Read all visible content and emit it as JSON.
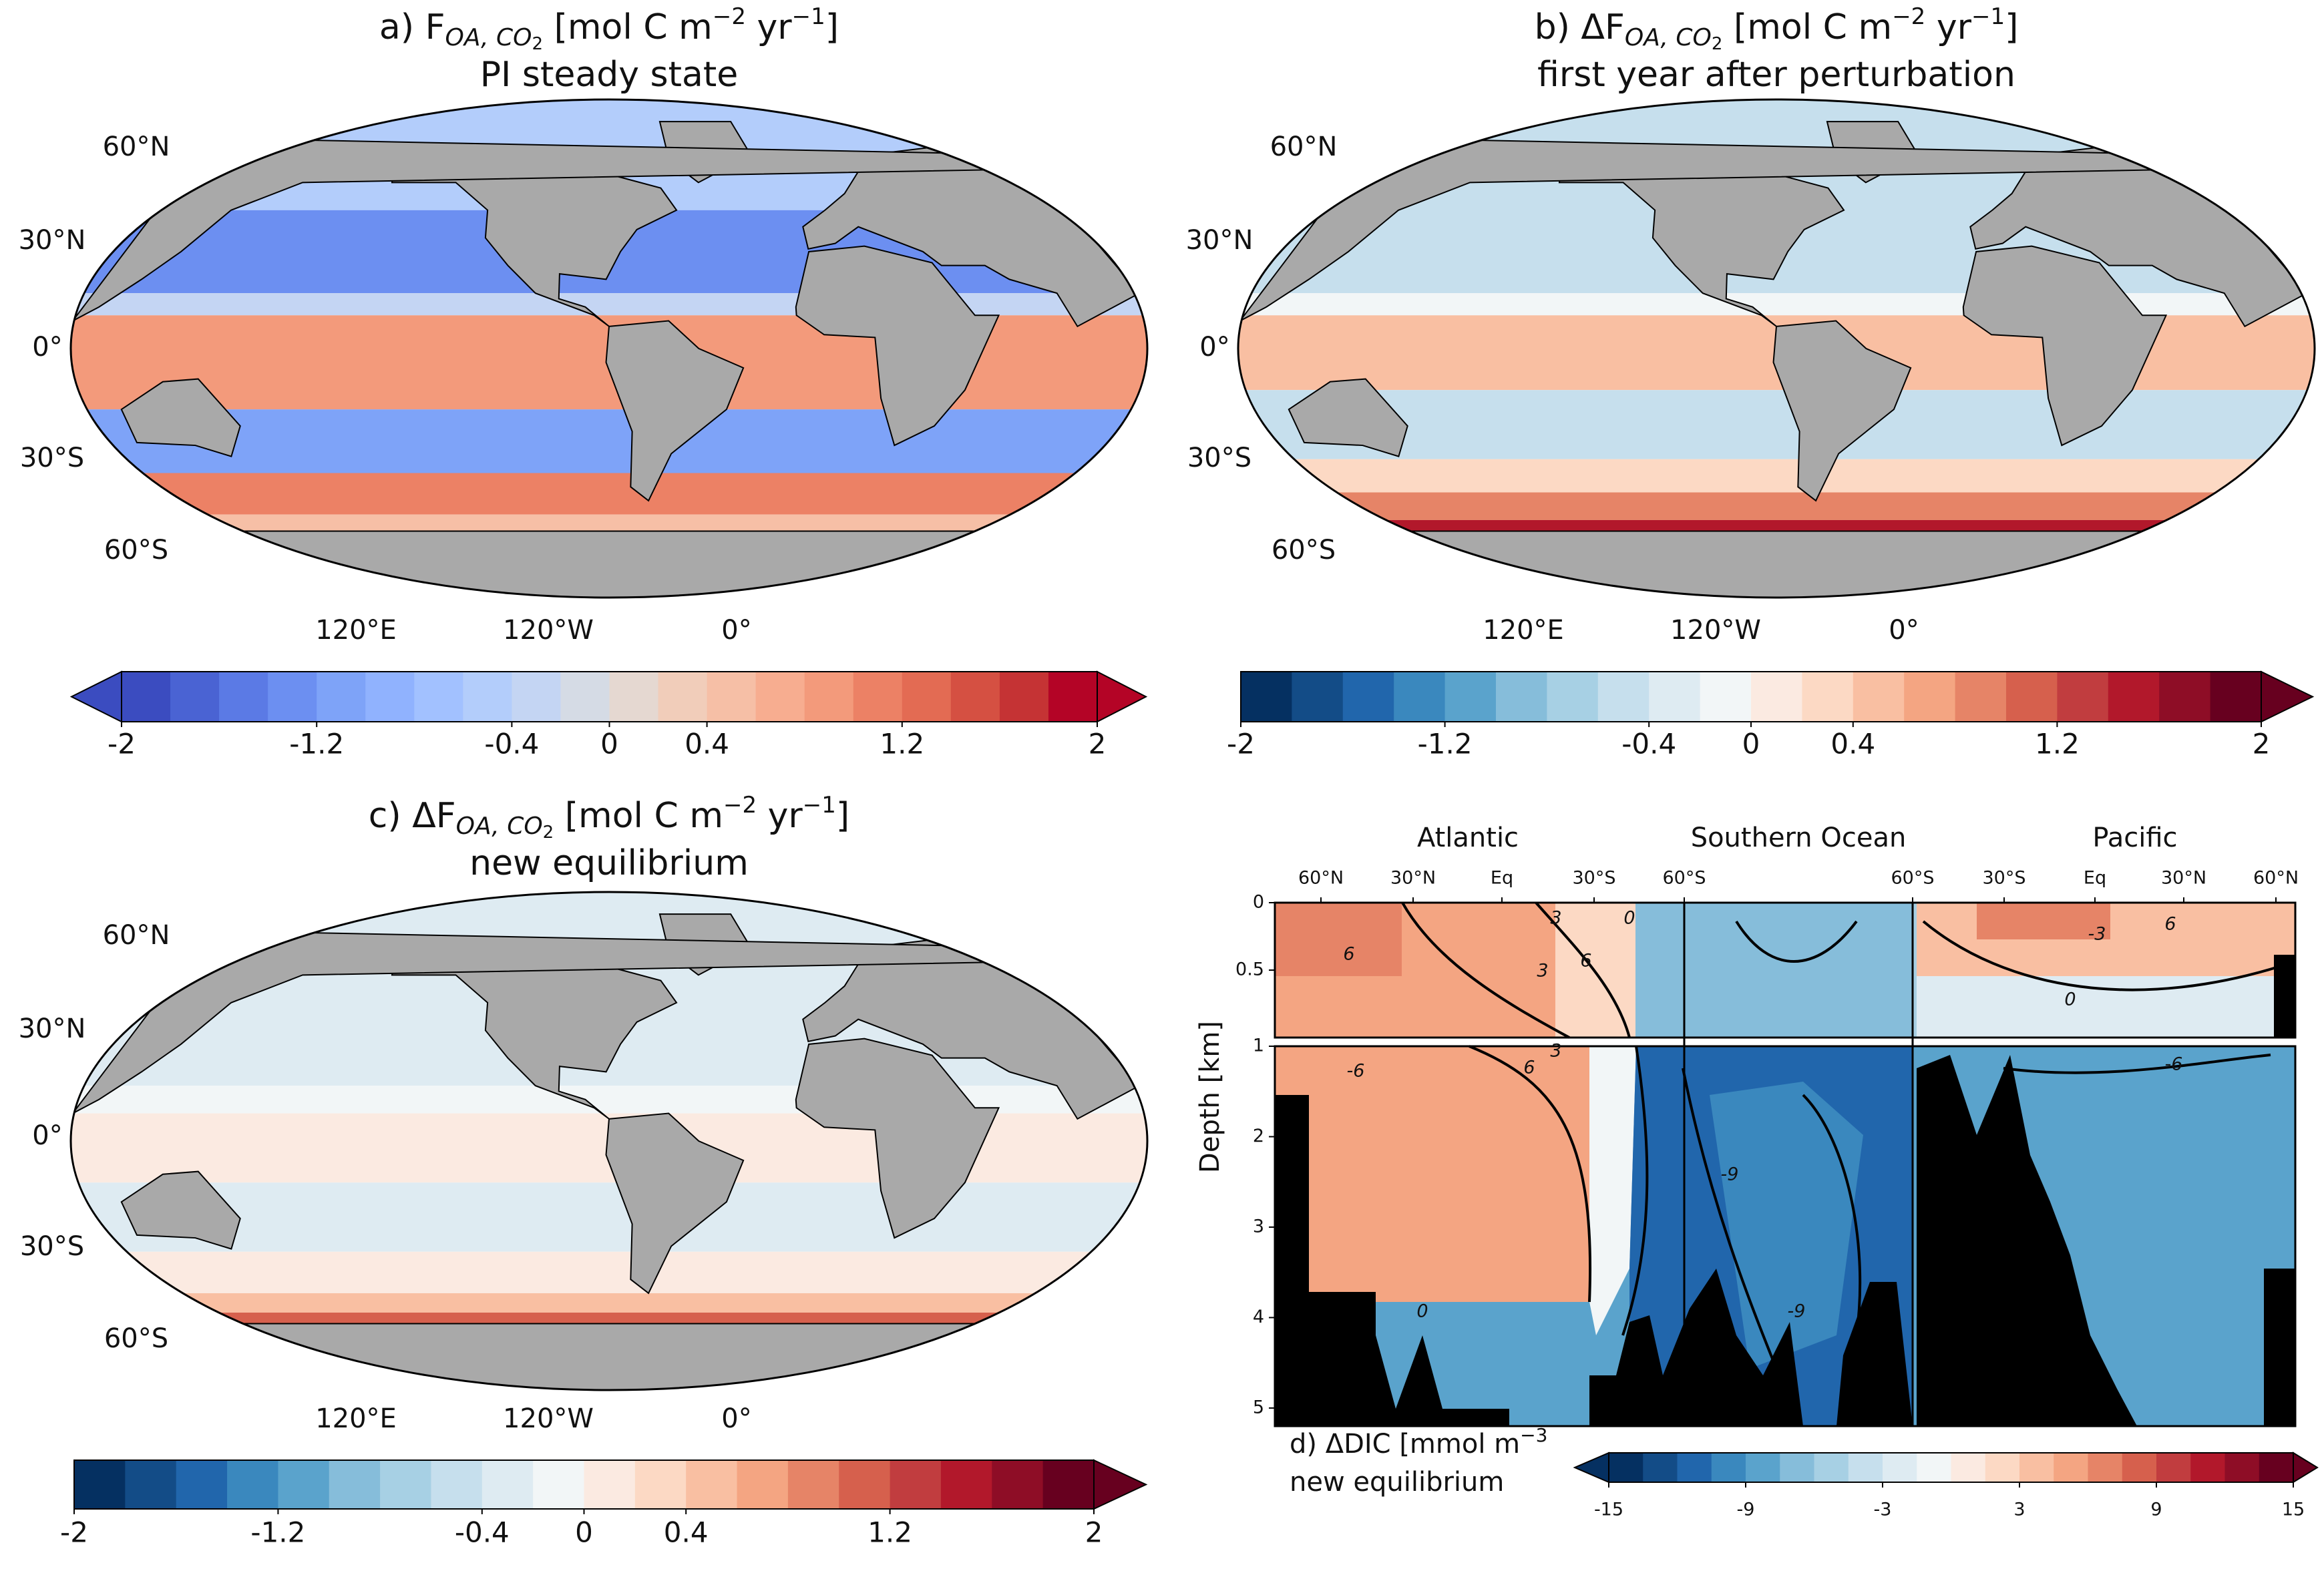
{
  "panels": [
    {
      "title": {
        "prefix": "a) F",
        "sub": "OA, CO",
        "sub2": "2",
        "unit1": " [mol C m",
        "exp1": "−2",
        "unit2": " yr",
        "exp2": "−1",
        "unit3": "]"
      },
      "subtitle": "PI steady state",
      "lat_labels": [
        "60°N",
        "30°N",
        "0°",
        "30°S",
        "60°S"
      ],
      "lon_labels": [
        "120°E",
        "120°W",
        "0°"
      ],
      "colorbar": {
        "lim": [
          -2,
          2
        ],
        "ticks": [
          -2,
          -1.2,
          -0.4,
          0,
          0.4,
          1.2,
          2
        ],
        "colors": [
          "#3b4cc0",
          "#4a63d3",
          "#5b7ae5",
          "#6c8ff1",
          "#7ea3f8",
          "#90b2fe",
          "#a2c1ff",
          "#b3cdfb",
          "#c4d5f3",
          "#d5dbe5",
          "#e5d8d1",
          "#f1cdba",
          "#f6bfa6",
          "#f7ad90",
          "#f39a7b",
          "#ec8165",
          "#e36b53",
          "#d55042",
          "#c53334",
          "#b40426"
        ]
      }
    },
    {
      "title": {
        "prefix": "b) ΔF",
        "sub": "OA, CO",
        "sub2": "2",
        "unit1": " [mol C m",
        "exp1": "−2",
        "unit2": " yr",
        "exp2": "−1",
        "unit3": "]"
      },
      "subtitle": "first year after perturbation",
      "lat_labels": [
        "60°N",
        "30°N",
        "0°",
        "30°S",
        "60°S"
      ],
      "lon_labels": [
        "120°E",
        "120°W",
        "0°"
      ],
      "colorbar": {
        "lim": [
          -2,
          2
        ],
        "ticks": [
          -2,
          -1.2,
          -0.4,
          0,
          0.4,
          1.2,
          2
        ],
        "colors": [
          "#053061",
          "#134c87",
          "#2166ac",
          "#3a88be",
          "#5aa3cc",
          "#86bdda",
          "#a7d0e4",
          "#c6dfed",
          "#deebf2",
          "#f2f6f7",
          "#fbeae1",
          "#fcd9c4",
          "#f9bfa2",
          "#f4a582",
          "#e68467",
          "#d6604d",
          "#c13d3f",
          "#b2182b",
          "#8e0d26",
          "#67001f"
        ]
      }
    },
    {
      "title": {
        "prefix": "c) ΔF",
        "sub": "OA, CO",
        "sub2": "2",
        "unit1": " [mol C m",
        "exp1": "−2",
        "unit2": " yr",
        "exp2": "−1",
        "unit3": "]"
      },
      "subtitle": "new equilibrium",
      "lat_labels": [
        "60°N",
        "30°N",
        "0°",
        "30°S",
        "60°S"
      ],
      "lon_labels": [
        "120°E",
        "120°W",
        "0°"
      ],
      "colorbar": {
        "lim": [
          -2,
          2
        ],
        "ticks": [
          -2,
          -1.2,
          -0.4,
          0,
          0.4,
          1.2,
          2
        ],
        "colors": [
          "#053061",
          "#134c87",
          "#2166ac",
          "#3a88be",
          "#5aa3cc",
          "#86bdda",
          "#a7d0e4",
          "#c6dfed",
          "#deebf2",
          "#f2f6f7",
          "#fbeae1",
          "#fcd9c4",
          "#f9bfa2",
          "#f4a582",
          "#e68467",
          "#d6604d",
          "#c13d3f",
          "#b2182b",
          "#8e0d26",
          "#67001f"
        ]
      }
    }
  ],
  "section": {
    "regions": [
      "Atlantic",
      "Southern Ocean",
      "Pacific"
    ],
    "lat_ticks": [
      "60°N",
      "30°N",
      "Eq",
      "30°S",
      "60°S",
      "60°S",
      "30°S",
      "Eq",
      "30°N",
      "60°N"
    ],
    "ylabel": "Depth [km]",
    "top_lim": [
      0,
      1
    ],
    "top_ticks": [
      0,
      0.5
    ],
    "bottom_lim": [
      1,
      5.2
    ],
    "bottom_ticks": [
      1,
      2,
      3,
      4,
      5
    ],
    "contour_labels": [
      "3",
      "6",
      "3",
      "6",
      "0",
      "6",
      "3",
      "6",
      "0",
      "-3",
      "-6",
      "-9",
      "-9",
      "0",
      "-6"
    ],
    "caption": {
      "line1": "d) ΔDIC [mmol m",
      "exp": "−3",
      "line2": "new equilibrium"
    },
    "colorbar": {
      "lim": [
        -15,
        15
      ],
      "ticks": [
        -15,
        -9,
        -3,
        3,
        9,
        15
      ],
      "colors": [
        "#053061",
        "#134c87",
        "#2166ac",
        "#3a88be",
        "#5aa3cc",
        "#86bdda",
        "#a7d0e4",
        "#c6dfed",
        "#deebf2",
        "#f2f6f7",
        "#fbeae1",
        "#fcd9c4",
        "#f9bfa2",
        "#f4a582",
        "#e68467",
        "#d6604d",
        "#c13d3f",
        "#b2182b",
        "#8e0d26",
        "#67001f"
      ]
    }
  }
}
